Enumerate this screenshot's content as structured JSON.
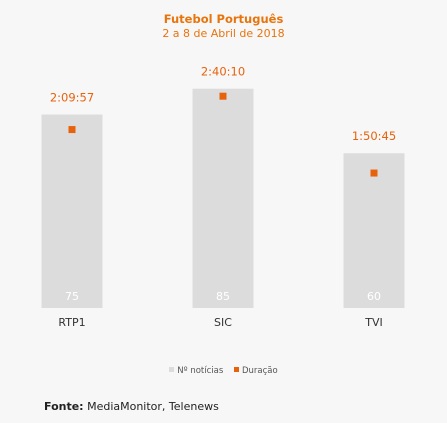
{
  "chart_data": {
    "type": "bar",
    "title": "Futebol Português",
    "subtitle": "2 a 8 de Abril de 2018",
    "categories": [
      "RTP1",
      "SIC",
      "TVI"
    ],
    "series": [
      {
        "name": "Nº notícias",
        "values": [
          75,
          85,
          60
        ],
        "color": "#dcdcdc"
      },
      {
        "name": "Duração",
        "values": [
          "2:09:57",
          "2:40:10",
          "1:50:45"
        ],
        "seconds": [
          7797,
          9610,
          6645
        ],
        "color": "#e8620c"
      }
    ],
    "bar_ylim": [
      0,
      100
    ],
    "duration_ylim": [
      0,
      12000
    ]
  },
  "legend": {
    "items": [
      "Nº notícias",
      "Duração"
    ]
  },
  "source": {
    "label": "Fonte:",
    "text": "MediaMonitor, Telenews"
  }
}
